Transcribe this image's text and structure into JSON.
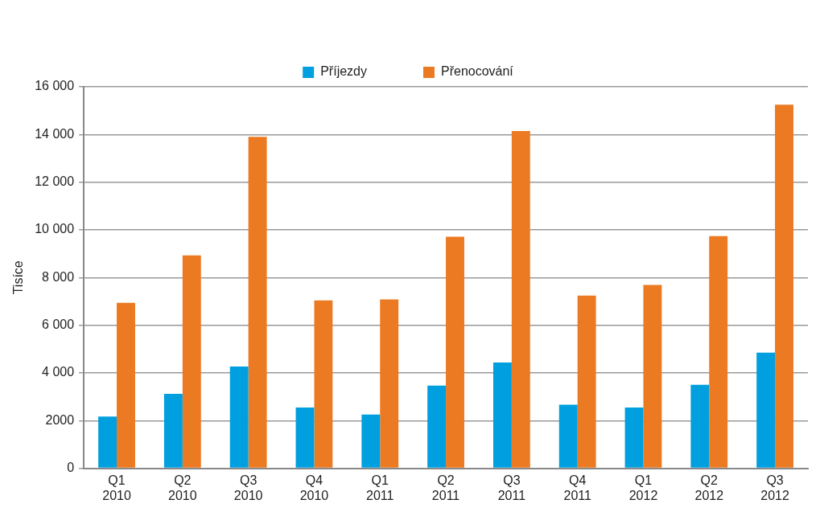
{
  "chart_data": {
    "type": "bar",
    "ylabel": "Tisíce",
    "categories": [
      "Q1 2010",
      "Q2 2010",
      "Q3 2010",
      "Q4 2010",
      "Q1 2011",
      "Q2 2011",
      "Q3 2011",
      "Q4 2011",
      "Q1 2012",
      "Q2 2012",
      "Q3 2012"
    ],
    "series": [
      {
        "name": "Příjezdy",
        "color": "#009fdf",
        "values": [
          2170,
          3120,
          4270,
          2550,
          2250,
          3470,
          4440,
          2670,
          2550,
          3500,
          4850
        ]
      },
      {
        "name": "Přenocování",
        "color": "#ec7a22",
        "values": [
          6940,
          8930,
          13900,
          7040,
          7080,
          9710,
          14150,
          7240,
          7690,
          9740,
          15250
        ]
      }
    ],
    "ylim": [
      0,
      16000
    ],
    "yticks": [
      0,
      2000,
      {
        "value": 4000,
        "label": "4 000"
      },
      {
        "value": 6000,
        "label": "6 000"
      },
      {
        "value": 8000,
        "label": "8 000"
      },
      {
        "value": 10000,
        "label": "10 000"
      },
      {
        "value": 12000,
        "label": "12 000"
      },
      {
        "value": 14000,
        "label": "14 000"
      },
      {
        "value": 16000,
        "label": "16 000"
      }
    ],
    "grid": "y",
    "legend": "top"
  }
}
